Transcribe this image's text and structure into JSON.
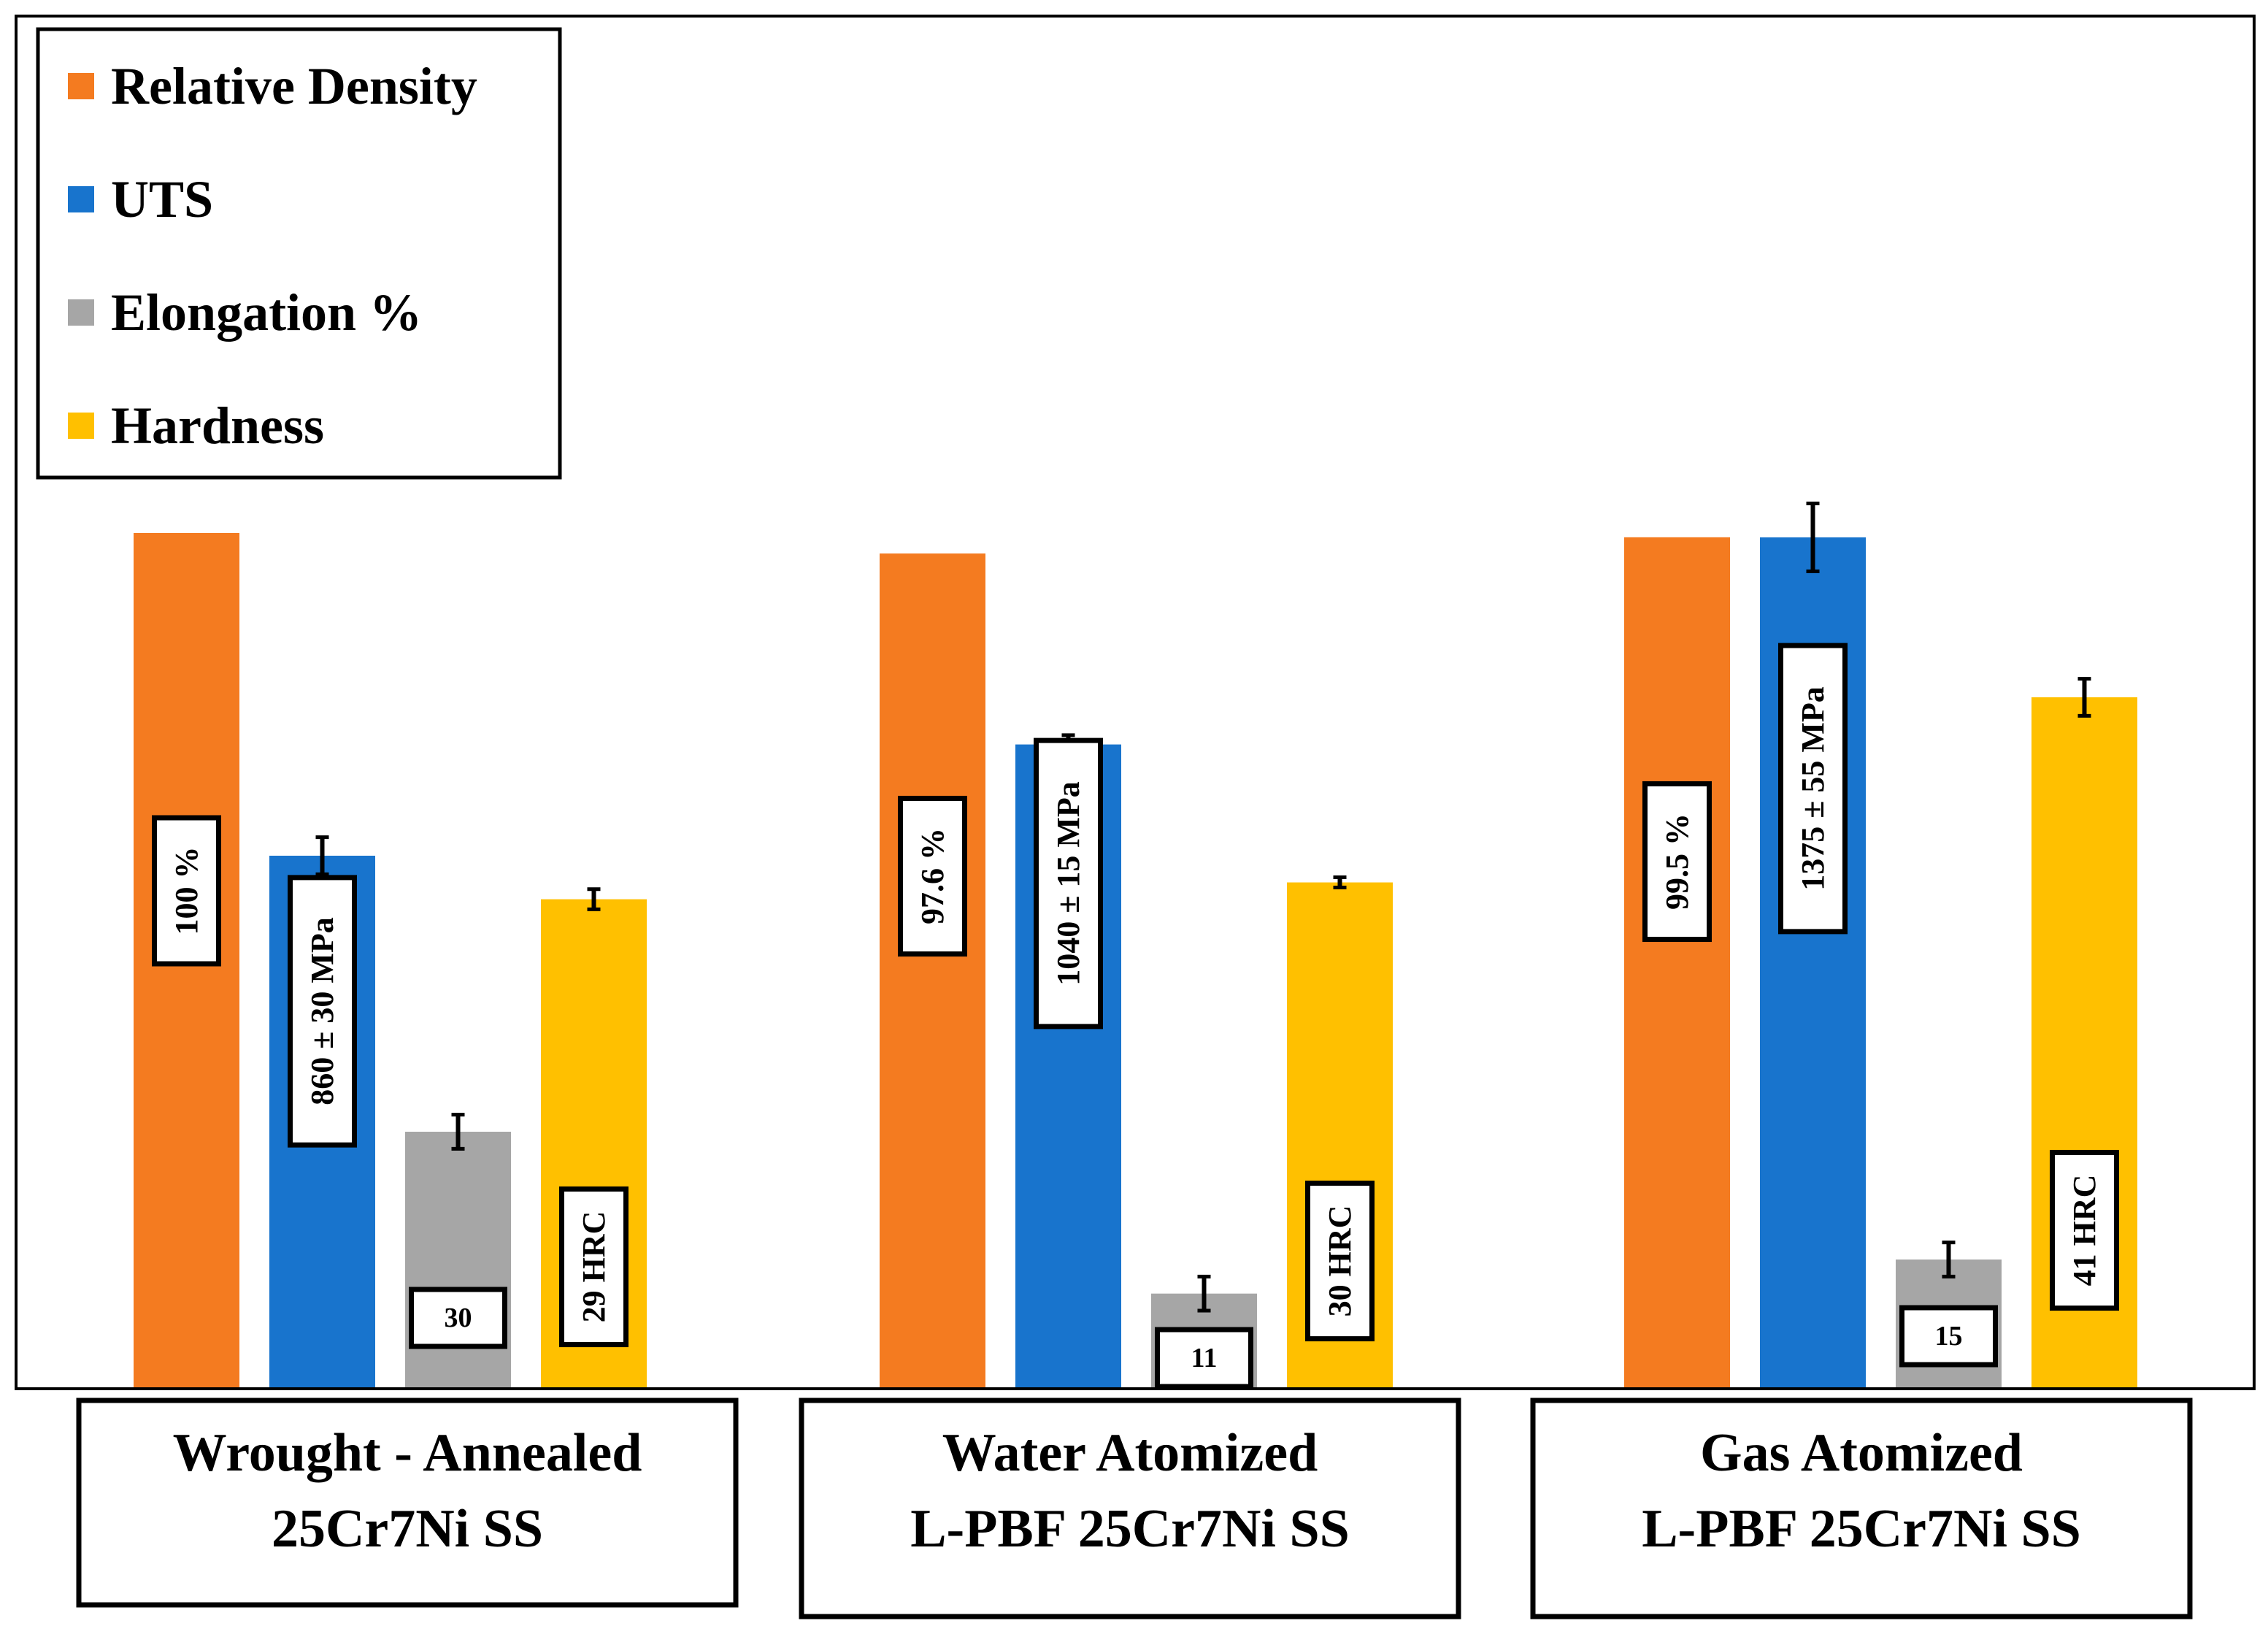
{
  "chart_data": {
    "type": "bar",
    "title": "",
    "xlabel": "",
    "ylabel": "",
    "grid": false,
    "legend_position": "top-left",
    "categories": [
      {
        "line1": "Wrought - Annealed",
        "line2": "25Cr7Ni SS"
      },
      {
        "line1": "Water Atomized",
        "line2": "L-PBF 25Cr7Ni SS"
      },
      {
        "line1": "Gas Atomized",
        "line2": "L-PBF 25Cr7Ni SS"
      }
    ],
    "series": [
      {
        "name": "Relative Density",
        "color": "#F47B20",
        "values": [
          100,
          97.6,
          99.5
        ],
        "errors": [
          0,
          0,
          0
        ],
        "labels": [
          "100 %",
          "97.6 %",
          "99.5 %"
        ],
        "label_orientation": "vertical"
      },
      {
        "name": "UTS",
        "color": "#1874CD",
        "values": [
          860,
          1040,
          1375
        ],
        "errors": [
          30,
          15,
          55
        ],
        "labels": [
          "860 ± 30 MPa",
          "1040 ± 15 MPa",
          "1375 ± 55 MPa"
        ],
        "label_orientation": "vertical"
      },
      {
        "name": "Elongation %",
        "color": "#A6A6A6",
        "values": [
          30,
          11,
          15
        ],
        "errors": [
          2,
          2,
          2
        ],
        "labels": [
          "30",
          "11",
          "15"
        ],
        "label_orientation": "horizontal"
      },
      {
        "name": "Hardness",
        "color": "#FFC000",
        "values": [
          29,
          30,
          41
        ],
        "errors": [
          0.6,
          0.3,
          1.1
        ],
        "labels": [
          "29 HRC",
          "30 HRC",
          "41 HRC"
        ],
        "label_orientation": "vertical"
      }
    ]
  }
}
